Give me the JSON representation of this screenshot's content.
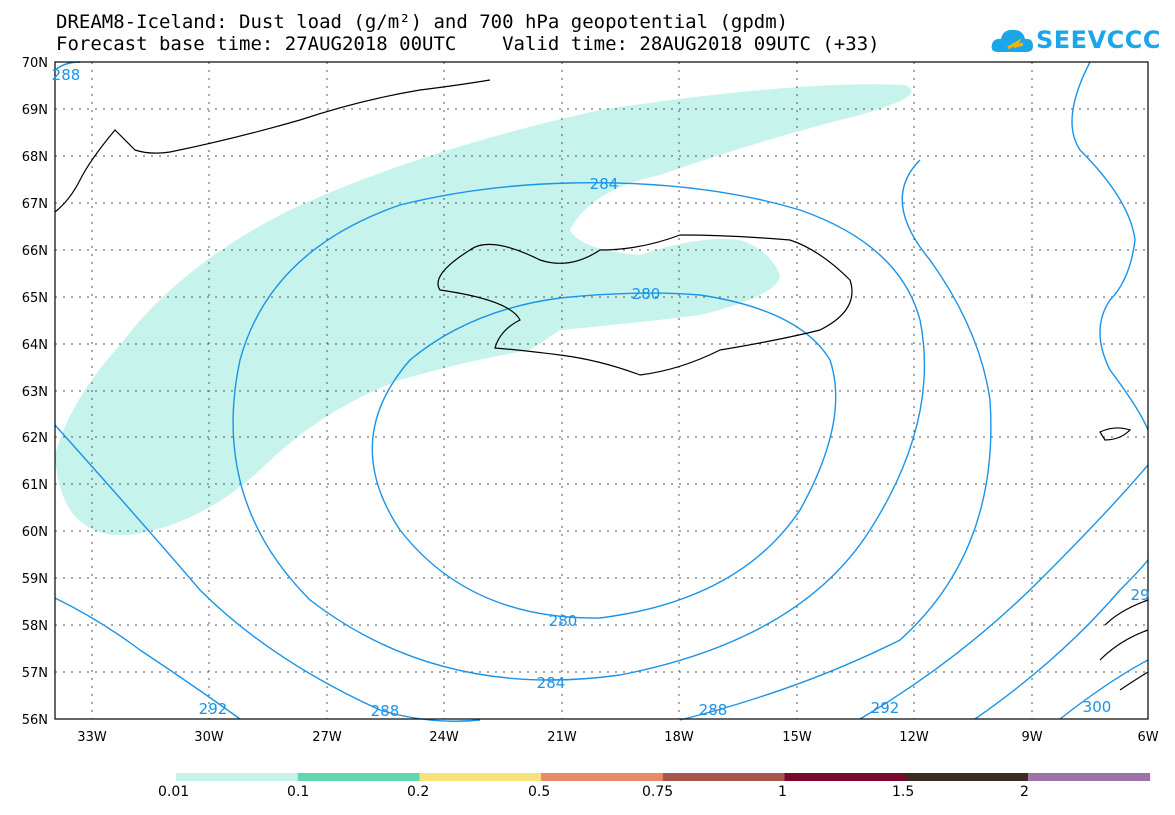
{
  "header": {
    "title_line1": "DREAM8-Iceland: Dust load (g/m²) and 700 hPa geopotential (gpdm)",
    "title_line2": "Forecast base time: 27AUG2018 00UTC    Valid time: 28AUG2018 09UTC (+33)"
  },
  "logo": {
    "text": "SEEVCCC",
    "icon": "cloud-logo-icon"
  },
  "map": {
    "lat_labels": [
      "70N",
      "69N",
      "68N",
      "67N",
      "66N",
      "65N",
      "64N",
      "63N",
      "62N",
      "61N",
      "60N",
      "59N",
      "58N",
      "57N",
      "56N"
    ],
    "lon_labels": [
      "33W",
      "30W",
      "27W",
      "24W",
      "21W",
      "18W",
      "15W",
      "12W",
      "9W",
      "6W"
    ],
    "contour_labels": [
      "284",
      "280",
      "280",
      "284",
      "288",
      "288",
      "292",
      "292",
      "300",
      "288",
      "29"
    ],
    "colors": {
      "dust_fill": "#c6f3ec",
      "contour": "#1a93e8",
      "coast": "#000000"
    }
  },
  "colorbar": {
    "colors": [
      "#c6f3ec",
      "#5ed8b0",
      "#f6e47a",
      "#e98a64",
      "#a8564a",
      "#7a0a2c",
      "#3a2a20",
      "#9a74a8"
    ],
    "labels": [
      "0.01",
      "0.1",
      "0.2",
      "0.5",
      "0.75",
      "1",
      "1.5",
      "2"
    ]
  }
}
